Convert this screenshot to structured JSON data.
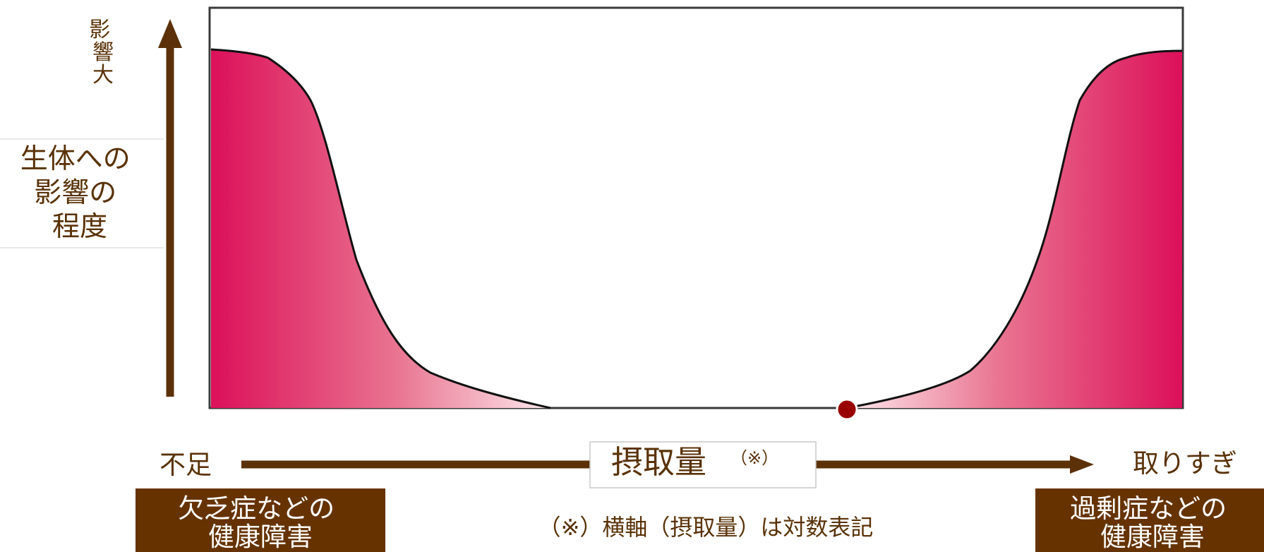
{
  "y_axis": {
    "top_label": "影響大",
    "title_lines": [
      "生体への",
      "影響の",
      "程度"
    ]
  },
  "x_axis": {
    "left_label": "不足",
    "center_label": "摂取量",
    "center_mark": "（※）",
    "right_label": "取りすぎ"
  },
  "boxes": {
    "left_lines": [
      "欠乏症などの",
      "健康障害"
    ],
    "right_lines": [
      "過剰症などの",
      "健康障害"
    ]
  },
  "footnote": "（※）横軸（摂取量）は対数表記",
  "colors": {
    "arrow": "#5c3109",
    "box_fill": "#663300",
    "curve_fill": "#dc1059",
    "curve_stroke": "#111111",
    "dot": "#990000"
  }
}
